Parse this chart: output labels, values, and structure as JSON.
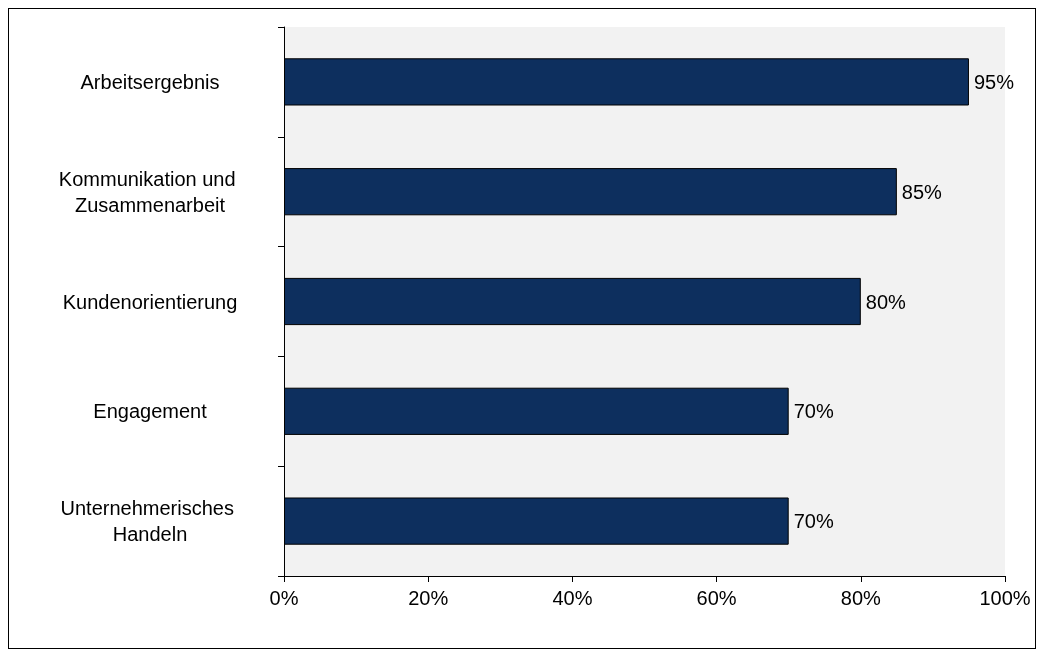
{
  "chart_data": {
    "type": "bar",
    "orientation": "horizontal",
    "categories": [
      "Arbeitsergebnis",
      "Kommunikation und Zusammenarbeit",
      "Kundenorientierung",
      "Engagement",
      "Unternehmerisches Handeln"
    ],
    "values": [
      95,
      85,
      80,
      70,
      70
    ],
    "value_labels": [
      "95%",
      "85%",
      "80%",
      "70%",
      "70%"
    ],
    "color": "#0d2f5e",
    "xlim": [
      0,
      100
    ],
    "xticks": [
      {
        "value": 0,
        "label": "0%"
      },
      {
        "value": 20,
        "label": "20%"
      },
      {
        "value": 40,
        "label": "40%"
      },
      {
        "value": 60,
        "label": "60%"
      },
      {
        "value": 80,
        "label": "80%"
      },
      {
        "value": 100,
        "label": "100%"
      }
    ],
    "grid": false
  }
}
